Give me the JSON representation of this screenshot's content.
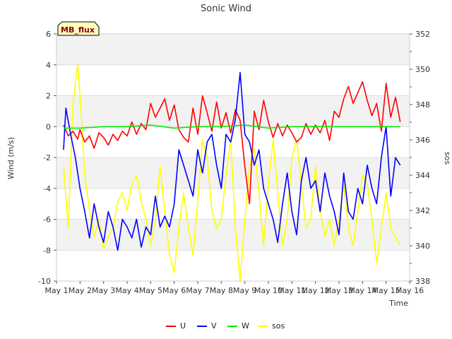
{
  "chart_data": {
    "type": "line",
    "title": "Sonic Wind",
    "badge": "MB_flux",
    "xlabel": "Time",
    "ylabel": "Wind (m/s)",
    "y2label": "sos",
    "x_ticks": [
      "May 1",
      "May 2",
      "May 3",
      "May 4",
      "May 5",
      "May 6",
      "May 7",
      "May 8",
      "May 9",
      "May 10",
      "May 11",
      "May 12",
      "May 13",
      "May 14",
      "May 15",
      "May 16"
    ],
    "xlim": [
      0,
      15
    ],
    "ylim": [
      -10,
      6
    ],
    "y_ticks": [
      -10,
      -8,
      -6,
      -4,
      -2,
      0,
      2,
      4,
      6
    ],
    "y2lim": [
      338,
      352
    ],
    "y2_ticks": [
      338,
      340,
      342,
      344,
      346,
      348,
      350,
      352
    ],
    "x_unit": "days since May 1",
    "grid": "horizontal bands",
    "legend_position": "bottom",
    "colors": {
      "U": "#ff0000",
      "V": "#0000ff",
      "W": "#00ee00",
      "sos": "#ffff00",
      "band": "#f2f2f2",
      "badge_fill": "#ffffc0"
    },
    "series": [
      {
        "name": "U",
        "axis": "left",
        "x": [
          0.3,
          0.5,
          0.7,
          0.9,
          1.0,
          1.2,
          1.4,
          1.6,
          1.8,
          2.0,
          2.2,
          2.4,
          2.6,
          2.8,
          3.0,
          3.2,
          3.4,
          3.6,
          3.8,
          4.0,
          4.2,
          4.4,
          4.6,
          4.8,
          5.0,
          5.2,
          5.4,
          5.6,
          5.8,
          6.0,
          6.2,
          6.4,
          6.6,
          6.8,
          7.0,
          7.2,
          7.4,
          7.6,
          7.8,
          8.0,
          8.2,
          8.4,
          8.6,
          8.8,
          9.0,
          9.2,
          9.4,
          9.6,
          9.8,
          10.0,
          10.2,
          10.4,
          10.6,
          10.8,
          11.0,
          11.2,
          11.4,
          11.6,
          11.8,
          12.0,
          12.2,
          12.4,
          12.6,
          12.8,
          13.0,
          13.2,
          13.4,
          13.6,
          13.8,
          14.0,
          14.2,
          14.4,
          14.6
        ],
        "y": [
          0.1,
          -0.6,
          -0.3,
          -0.8,
          -0.2,
          -1.0,
          -0.6,
          -1.4,
          -0.4,
          -0.7,
          -1.2,
          -0.5,
          -0.9,
          -0.3,
          -0.6,
          0.3,
          -0.5,
          0.2,
          -0.2,
          1.5,
          0.6,
          1.2,
          1.8,
          0.4,
          1.4,
          -0.2,
          -0.7,
          -1.0,
          1.2,
          -0.5,
          2.0,
          0.9,
          -0.3,
          1.6,
          -0.1,
          0.9,
          -0.4,
          1.1,
          0.4,
          -2.6,
          -5.0,
          1.0,
          -0.2,
          1.7,
          0.3,
          -0.7,
          0.2,
          -0.6,
          0.1,
          -0.4,
          -1.0,
          -0.7,
          0.2,
          -0.5,
          0.1,
          -0.4,
          0.4,
          -0.9,
          1.0,
          0.6,
          1.8,
          2.6,
          1.5,
          2.2,
          2.9,
          1.7,
          0.7,
          1.5,
          -0.3,
          2.8,
          0.6,
          1.9,
          0.3
        ]
      },
      {
        "name": "V",
        "axis": "left",
        "x": [
          0.3,
          0.4,
          0.6,
          0.8,
          1.0,
          1.2,
          1.4,
          1.6,
          1.8,
          2.0,
          2.2,
          2.4,
          2.6,
          2.8,
          3.0,
          3.2,
          3.4,
          3.6,
          3.8,
          4.0,
          4.2,
          4.4,
          4.6,
          4.8,
          5.0,
          5.2,
          5.4,
          5.6,
          5.8,
          6.0,
          6.2,
          6.4,
          6.6,
          6.8,
          7.0,
          7.2,
          7.4,
          7.6,
          7.8,
          8.0,
          8.2,
          8.4,
          8.6,
          8.8,
          9.0,
          9.2,
          9.4,
          9.6,
          9.8,
          10.0,
          10.2,
          10.4,
          10.6,
          10.8,
          11.0,
          11.2,
          11.4,
          11.6,
          11.8,
          12.0,
          12.2,
          12.4,
          12.6,
          12.8,
          13.0,
          13.2,
          13.4,
          13.6,
          13.8,
          14.0,
          14.2,
          14.4,
          14.6
        ],
        "y": [
          -1.5,
          1.2,
          -0.5,
          -2.0,
          -4.0,
          -5.5,
          -7.2,
          -5.0,
          -6.5,
          -7.5,
          -5.5,
          -6.5,
          -8.0,
          -6.0,
          -6.5,
          -7.2,
          -6.0,
          -7.8,
          -6.5,
          -7.0,
          -4.5,
          -6.5,
          -5.8,
          -6.5,
          -5.0,
          -1.5,
          -2.5,
          -3.5,
          -4.5,
          -1.5,
          -3.0,
          -1.0,
          -0.5,
          -2.5,
          -4.0,
          -0.5,
          -1.0,
          0.5,
          3.5,
          -0.5,
          -1.0,
          -2.5,
          -1.5,
          -4.0,
          -5.0,
          -6.0,
          -7.5,
          -5.0,
          -3.0,
          -5.5,
          -7.0,
          -3.5,
          -2.0,
          -4.0,
          -3.5,
          -5.5,
          -3.0,
          -4.5,
          -5.5,
          -7.0,
          -3.0,
          -5.5,
          -6.0,
          -4.0,
          -5.0,
          -2.5,
          -4.0,
          -5.0,
          -2.0,
          0.0,
          -4.5,
          -2.0,
          -2.5
        ]
      },
      {
        "name": "W",
        "axis": "left",
        "x": [
          0.3,
          1.0,
          2.0,
          3.0,
          4.0,
          5.0,
          6.0,
          7.0,
          8.0,
          9.0,
          10.0,
          11.0,
          12.0,
          13.0,
          14.0,
          14.6
        ],
        "y": [
          -0.1,
          -0.1,
          0.0,
          0.0,
          0.1,
          -0.1,
          0.0,
          0.0,
          0.1,
          -0.1,
          0.0,
          0.0,
          0.0,
          0.0,
          0.0,
          0.0
        ]
      },
      {
        "name": "sos",
        "axis": "right",
        "x": [
          0.3,
          0.5,
          0.7,
          0.9,
          1.0,
          1.2,
          1.4,
          1.6,
          1.8,
          2.0,
          2.2,
          2.4,
          2.6,
          2.8,
          3.0,
          3.2,
          3.4,
          3.6,
          3.8,
          4.0,
          4.2,
          4.4,
          4.6,
          4.8,
          5.0,
          5.2,
          5.4,
          5.6,
          5.8,
          6.0,
          6.2,
          6.4,
          6.6,
          6.8,
          7.0,
          7.2,
          7.4,
          7.6,
          7.8,
          8.0,
          8.2,
          8.4,
          8.6,
          8.8,
          9.0,
          9.2,
          9.4,
          9.6,
          9.8,
          10.0,
          10.2,
          10.4,
          10.6,
          10.8,
          11.0,
          11.2,
          11.4,
          11.6,
          11.8,
          12.0,
          12.2,
          12.4,
          12.6,
          12.8,
          13.0,
          13.2,
          13.4,
          13.6,
          13.8,
          14.0,
          14.2,
          14.4,
          14.6
        ],
        "y": [
          344.5,
          341.0,
          348.0,
          350.3,
          348.5,
          344.0,
          342.0,
          340.5,
          341.5,
          339.8,
          340.5,
          341.0,
          342.5,
          343.0,
          342.0,
          343.5,
          344.0,
          342.5,
          341.5,
          340.0,
          341.5,
          344.5,
          342.0,
          339.5,
          338.5,
          341.0,
          343.0,
          341.0,
          339.5,
          342.5,
          346.0,
          345.0,
          342.0,
          341.0,
          341.5,
          344.0,
          346.0,
          341.0,
          338.0,
          341.5,
          344.5,
          345.5,
          343.0,
          340.0,
          343.5,
          346.0,
          343.0,
          340.0,
          341.5,
          345.0,
          346.0,
          343.5,
          341.0,
          341.5,
          344.5,
          342.0,
          340.5,
          341.5,
          340.0,
          341.5,
          343.5,
          341.0,
          340.0,
          342.0,
          344.0,
          343.5,
          341.5,
          339.0,
          341.0,
          343.0,
          341.0,
          340.5,
          340.0
        ]
      }
    ]
  }
}
